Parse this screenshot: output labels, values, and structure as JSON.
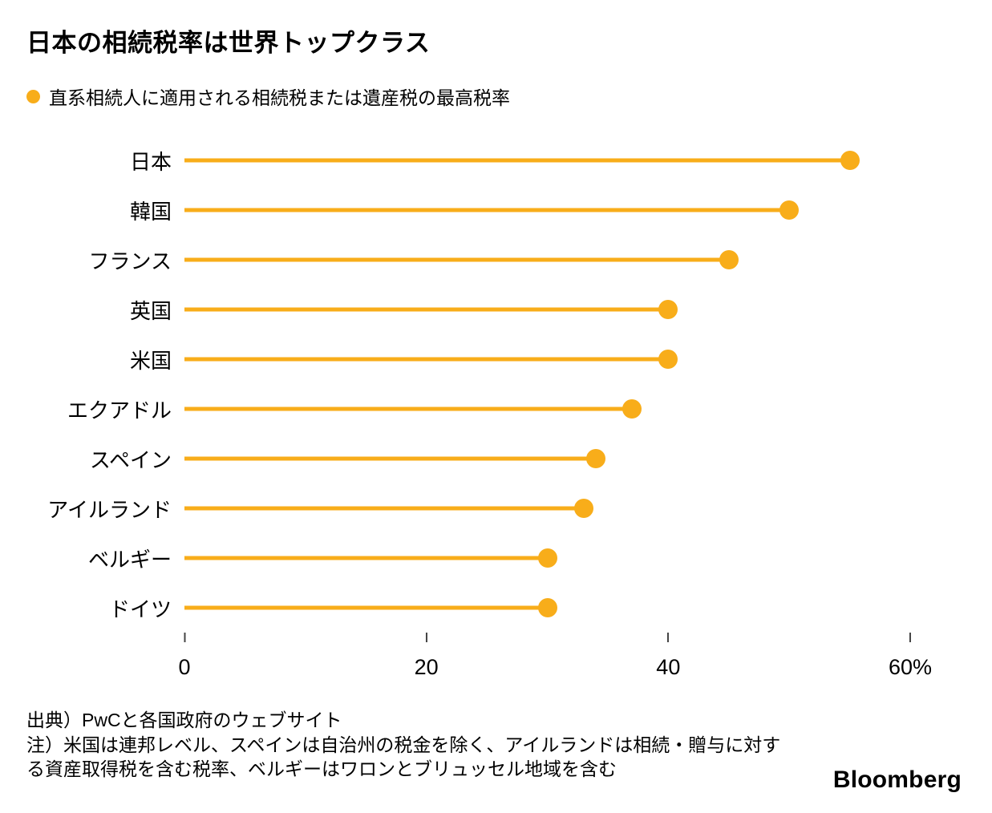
{
  "header": {
    "title": "日本の相続税率は世界トップクラス"
  },
  "legend": {
    "label": "直系相続人に適用される相続税または遺産税の最高税率"
  },
  "chart_data": {
    "type": "bar",
    "subtype": "horizontal-lollipop",
    "title": "日本の相続税率は世界トップクラス",
    "series_label": "直系相続人に適用される相続税または遺産税の最高税率",
    "categories": [
      "日本",
      "韓国",
      "フランス",
      "英国",
      "米国",
      "エクアドル",
      "スペイン",
      "アイルランド",
      "ベルギー",
      "ドイツ"
    ],
    "values": [
      55,
      50,
      45,
      40,
      40,
      37,
      34,
      33,
      30,
      30
    ],
    "xlabel": "",
    "ylabel": "",
    "xlim": [
      0,
      60
    ],
    "x_ticks": [
      0,
      20,
      40,
      60
    ],
    "x_tick_labels": [
      "0",
      "20",
      "40",
      "60%"
    ],
    "grid": false,
    "legend_position": "top-left",
    "accent_color": "#F8AD1A"
  },
  "footer": {
    "source": "出典）PwCと各国政府のウェブサイト",
    "note": "注）米国は連邦レベル、スペインは自治州の税金を除く、アイルランドは相続・贈与に対する資産取得税を含む税率、ベルギーはワロンとブリュッセル地域を含む",
    "brand": "Bloomberg"
  }
}
